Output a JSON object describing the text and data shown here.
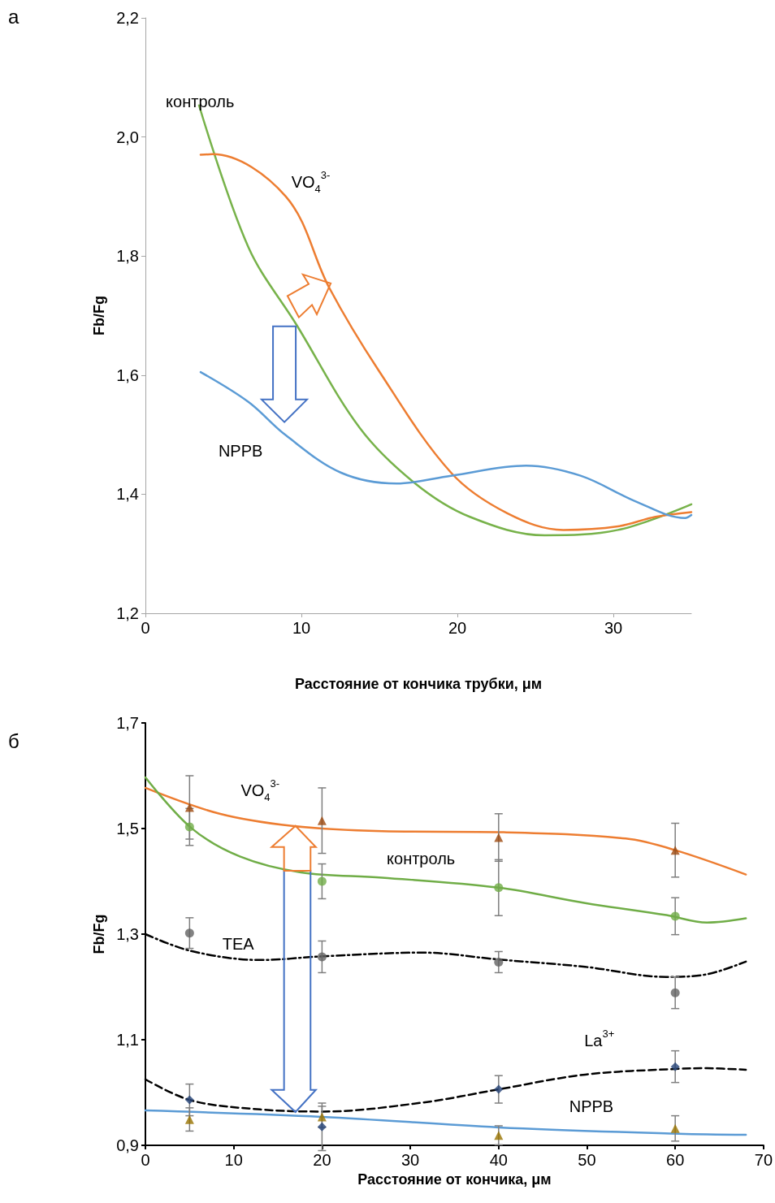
{
  "chart_data": [
    {
      "type": "line",
      "xlabel": "Расстояние от кончика трубки, μм",
      "ylabel": "Fb/Fg",
      "annotations": [
        "а"
      ],
      "xlim": [
        0,
        35
      ],
      "xticks": [
        0,
        10,
        20,
        30
      ],
      "ylim": [
        1.2,
        2.2
      ],
      "yticks": [
        {
          "value": 1.2,
          "label": "1,2"
        },
        {
          "value": 1.4,
          "label": "1,4"
        },
        {
          "value": 1.6,
          "label": "1,6"
        },
        {
          "value": 1.8,
          "label": "1,8"
        },
        {
          "value": 2.0,
          "label": "2,0"
        },
        {
          "value": 2.2,
          "label": "2,2"
        }
      ],
      "grid": false,
      "legend": false,
      "marker": "none",
      "line_style": "solid",
      "series": [
        {
          "name": "контроль",
          "color": "#77b24a",
          "x": [
            3.44,
            6.6,
            9.7,
            13.75,
            17.3,
            20.8,
            25.6,
            30.3,
            35
          ],
          "values": [
            2.053,
            1.815,
            1.684,
            1.511,
            1.418,
            1.362,
            1.331,
            1.34,
            1.383
          ]
        },
        {
          "name": "VO$_{4}$$^{3-}$",
          "color": "#ed7d31",
          "x": [
            3.54,
            4.3,
            9.0,
            11.8,
            14.9,
            19.6,
            23.2,
            26.8,
            30.3,
            32.7,
            35
          ],
          "values": [
            1.97,
            1.971,
            1.9,
            1.746,
            1.61,
            1.436,
            1.368,
            1.34,
            1.346,
            1.362,
            1.37
          ]
        },
        {
          "name": "NPPB",
          "color": "#5b9bd5",
          "x": [
            3.54,
            6.6,
            9.0,
            12.55,
            16.1,
            19.6,
            24.4,
            27.9,
            31.5,
            34.6,
            35
          ],
          "values": [
            1.605,
            1.555,
            1.499,
            1.436,
            1.418,
            1.431,
            1.448,
            1.431,
            1.387,
            1.36,
            1.365
          ]
        }
      ]
    },
    {
      "type": "line",
      "xlabel": "Расстояние от кончика, μм",
      "ylabel": "Fb/Fg",
      "annotations": [
        "б"
      ],
      "xlim": [
        0,
        70
      ],
      "xticks": [
        0,
        10,
        20,
        30,
        40,
        50,
        60,
        70
      ],
      "ylim": [
        0.9,
        1.7
      ],
      "yticks": [
        {
          "value": 0.9,
          "label": "0,9"
        },
        {
          "value": 1.1,
          "label": "1,1"
        },
        {
          "value": 1.3,
          "label": "1,3"
        },
        {
          "value": 1.5,
          "label": "1,5"
        },
        {
          "value": 1.7,
          "label": "1,7"
        }
      ],
      "grid": false,
      "legend": false,
      "marker": "none",
      "line_style": "solid",
      "series": [
        {
          "name": "VO$_{4}$$^{3-}$",
          "color": "#ed7d31",
          "x": [
            0,
            8.4,
            16.6,
            26.8,
            40.6,
            54.4,
            60,
            68
          ],
          "values": [
            1.577,
            1.528,
            1.505,
            1.495,
            1.493,
            1.481,
            1.459,
            1.413
          ]
        },
        {
          "name": "контроль",
          "color": "#70ad47",
          "x": [
            0,
            5.2,
            10.7,
            17.6,
            26.8,
            40,
            49.8,
            59,
            63.6,
            68
          ],
          "values": [
            1.597,
            1.501,
            1.447,
            1.417,
            1.407,
            1.388,
            1.359,
            1.336,
            1.322,
            1.33
          ]
        },
        {
          "name": "TEA",
          "color": "#000000",
          "line_style": "dashdot",
          "x": [
            0,
            5.2,
            13,
            20.1,
            31.4,
            40,
            49.8,
            59,
            63.6,
            68
          ],
          "values": [
            1.3,
            1.268,
            1.251,
            1.258,
            1.265,
            1.252,
            1.238,
            1.219,
            1.224,
            1.248
          ]
        },
        {
          "name": "La$^{3+}$",
          "color": "#000000",
          "line_style": "dashed",
          "x": [
            0,
            5.2,
            13,
            20.1,
            31.4,
            40,
            49.8,
            60.4,
            63.6,
            68
          ],
          "values": [
            1.025,
            0.985,
            0.968,
            0.964,
            0.981,
            1.006,
            1.034,
            1.045,
            1.046,
            1.043
          ]
        },
        {
          "name": "NPPB",
          "color": "#5b9bd5",
          "x": [
            0,
            20,
            40,
            60.4,
            68
          ],
          "values": [
            0.966,
            0.954,
            0.934,
            0.922,
            0.92
          ]
        },
        {
          "type": "scatter",
          "marker": "triangle",
          "color": "#9e480e",
          "x": [
            5,
            20,
            40,
            60
          ],
          "values": [
            1.54,
            1.515,
            1.483,
            1.459
          ],
          "errors": [
            0.06,
            0.062,
            0.045,
            0.051
          ]
        },
        {
          "type": "scatter",
          "marker": "circle",
          "color": "#70ad47",
          "x": [
            5,
            20,
            40,
            60
          ],
          "values": [
            1.503,
            1.4,
            1.388,
            1.334
          ],
          "errors": [
            0.035,
            0.033,
            0.053,
            0.035
          ]
        },
        {
          "type": "scatter",
          "marker": "circle",
          "color": "#636363",
          "x": [
            5,
            20,
            40,
            60
          ],
          "values": [
            1.302,
            1.257,
            1.247,
            1.189
          ],
          "errors": [
            0.029,
            0.03,
            0.02,
            0.03
          ]
        },
        {
          "type": "scatter",
          "marker": "diamond",
          "color": "#264478",
          "x": [
            5,
            20,
            40,
            60
          ],
          "values": [
            0.986,
            0.935,
            1.006,
            1.049
          ],
          "errors": [
            0.03,
            0.045,
            0.026,
            0.03
          ]
        },
        {
          "type": "scatter",
          "marker": "triangle",
          "color": "#997300",
          "x": [
            5,
            20,
            40,
            60
          ],
          "values": [
            0.949,
            0.954,
            0.919,
            0.932
          ],
          "errors": [
            0.022,
            0.02,
            0.018,
            0.024
          ]
        }
      ]
    }
  ]
}
